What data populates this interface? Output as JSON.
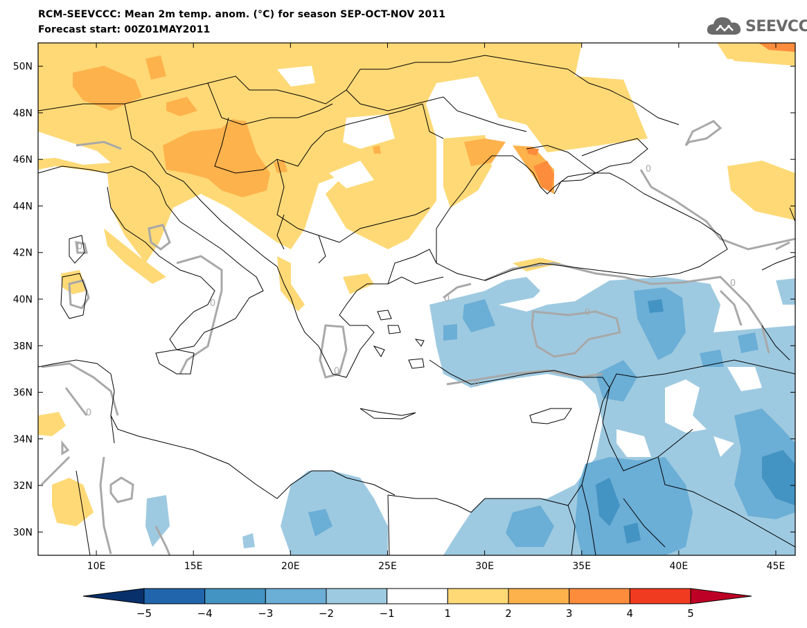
{
  "header": {
    "title_line1": "RCM-SEEVCCC: Mean 2m temp. anom. (°C) for season SEP-OCT-NOV 2011",
    "title_line2": "Forecast start: 00Z01MAY2011"
  },
  "logo": {
    "text": "SEEVCCC",
    "icon": "cloud-icon"
  },
  "map": {
    "lon_range": [
      7,
      46
    ],
    "lat_range": [
      29,
      51
    ],
    "lat_ticks": [
      "50N",
      "48N",
      "46N",
      "44N",
      "42N",
      "40N",
      "38N",
      "36N",
      "34N",
      "32N",
      "30N"
    ],
    "lon_ticks": [
      "10E",
      "15E",
      "20E",
      "25E",
      "30E",
      "35E",
      "40E",
      "45E"
    ],
    "contour_label": "0"
  },
  "colorbar": {
    "labels": [
      "-5",
      "-4",
      "-3",
      "-2",
      "-1",
      "1",
      "2",
      "3",
      "4",
      "5"
    ],
    "colors": [
      "#08306b",
      "#2166ac",
      "#4393c3",
      "#6baed6",
      "#9ecae1",
      "#ffffff",
      "#fed976",
      "#feb24c",
      "#fd8d3c",
      "#f03b20",
      "#bd0026"
    ]
  },
  "legend_colors": {
    "warm_1_2": "#fed976",
    "warm_2_3": "#feb24c",
    "warm_3_4": "#fd8d3c",
    "cool_1_2": "#9ecae1",
    "cool_2_3": "#6baed6",
    "cool_3_4": "#4393c3"
  }
}
